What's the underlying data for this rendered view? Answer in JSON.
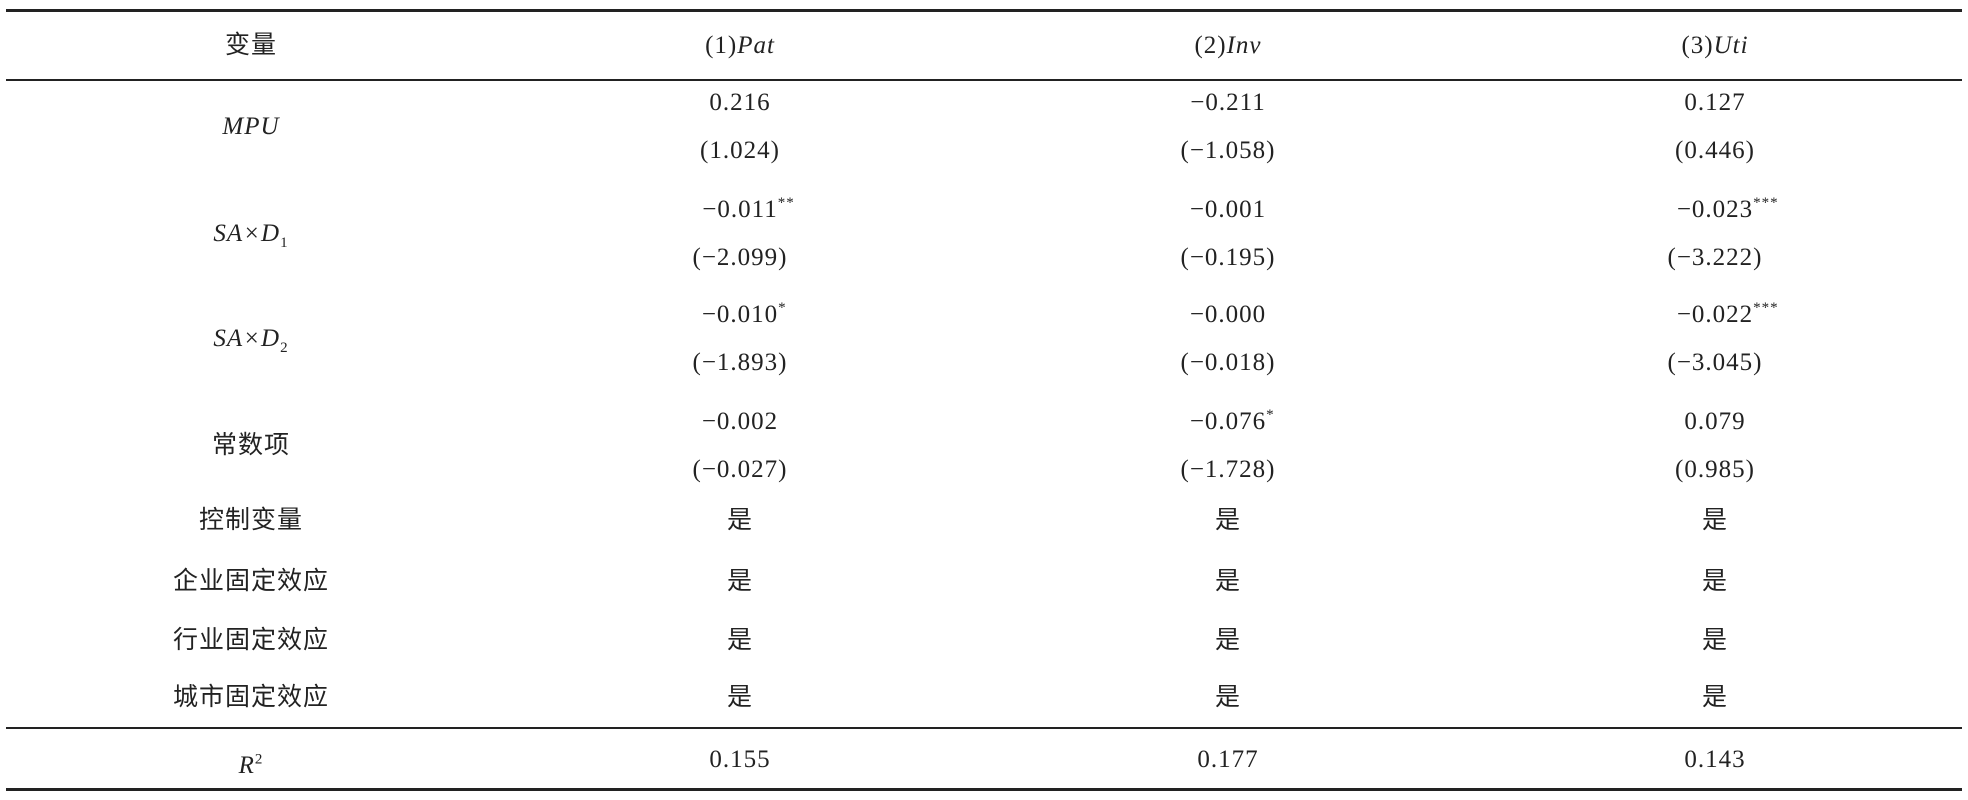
{
  "header": {
    "variable": "变量",
    "columns": [
      {
        "number": "(1)",
        "name": "Pat"
      },
      {
        "number": "(2)",
        "name": "Inv"
      },
      {
        "number": "(3)",
        "name": "Uti"
      }
    ]
  },
  "coef_rows": [
    {
      "label": {
        "text": "MPU",
        "italic": true
      },
      "cells": [
        {
          "coef": "0.216",
          "t": "(1.024)"
        },
        {
          "coef": "−0.211",
          "t": "(−1.058)"
        },
        {
          "coef": "0.127",
          "t": "(0.446)"
        }
      ]
    },
    {
      "label": {
        "text": "SA×D",
        "sub": "1",
        "italic": true
      },
      "cells": [
        {
          "coef": "−0.011",
          "stars": "**",
          "t": "(−2.099)"
        },
        {
          "coef": "−0.001",
          "t": "(−0.195)"
        },
        {
          "coef": "−0.023",
          "stars": "***",
          "t": "(−3.222)"
        }
      ]
    },
    {
      "label": {
        "text": "SA×D",
        "sub": "2",
        "italic": true
      },
      "cells": [
        {
          "coef": "−0.010",
          "stars": "*",
          "t": "(−1.893)"
        },
        {
          "coef": "−0.000",
          "t": "(−0.018)"
        },
        {
          "coef": "−0.022",
          "stars": "***",
          "t": "(−3.045)"
        }
      ]
    },
    {
      "label": {
        "text": "常数项"
      },
      "cells": [
        {
          "coef": "−0.002",
          "t": "(−0.027)"
        },
        {
          "coef": "−0.076",
          "stars": "*",
          "t": "(−1.728)"
        },
        {
          "coef": "0.079",
          "t": "(0.985)"
        }
      ]
    }
  ],
  "yes_rows": [
    {
      "label": "控制变量",
      "cells": [
        "是",
        "是",
        "是"
      ]
    },
    {
      "label": "企业固定效应",
      "cells": [
        "是",
        "是",
        "是"
      ]
    },
    {
      "label": "行业固定效应",
      "cells": [
        "是",
        "是",
        "是"
      ]
    },
    {
      "label": "城市固定效应",
      "cells": [
        "是",
        "是",
        "是"
      ]
    }
  ],
  "r2": {
    "label": {
      "text": "R",
      "sup": "2",
      "italic": true
    },
    "cells": [
      "0.155",
      "0.177",
      "0.143"
    ]
  }
}
